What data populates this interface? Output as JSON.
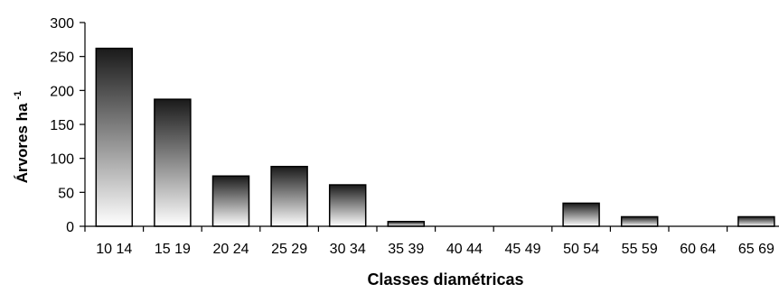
{
  "chart_data": {
    "type": "bar",
    "categories": [
      "10 14",
      "15 19",
      "20 24",
      "25 29",
      "30 34",
      "35 39",
      "40 44",
      "45 49",
      "50 54",
      "55 59",
      "60 64",
      "65 69"
    ],
    "values": [
      262,
      187,
      74,
      88,
      61,
      7,
      0,
      0,
      34,
      14,
      0,
      14
    ],
    "xlabel": "Classes diamétricas",
    "ylabel": "Árvores ha",
    "ylabel_superscript": "-1",
    "ylim": [
      0,
      300
    ],
    "yticks": [
      "0",
      "50",
      "100",
      "150",
      "200",
      "250",
      "300"
    ],
    "grid": false,
    "legend": "none",
    "colors": {
      "bar_top": "#1a1a1a",
      "bar_bottom": "#ffffff",
      "axis": "#000000"
    }
  }
}
